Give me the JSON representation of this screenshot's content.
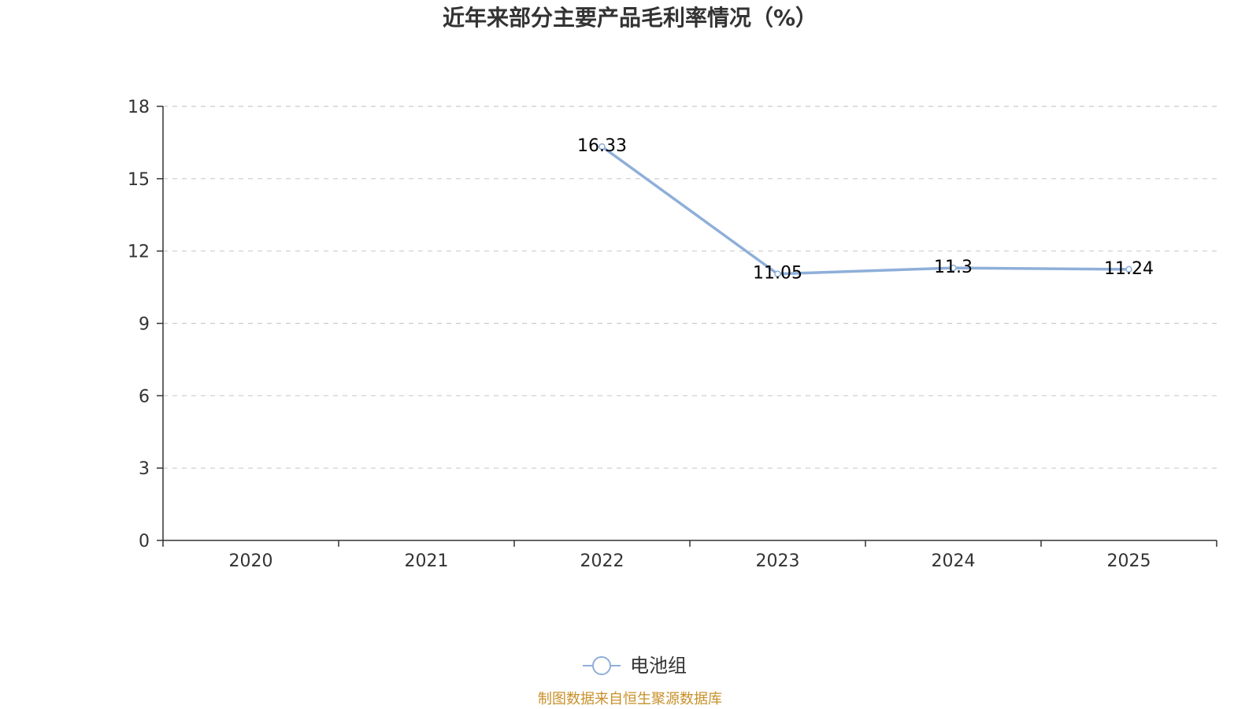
{
  "chart_data": {
    "type": "line",
    "title": "近年来部分主要产品毛利率情况（%）",
    "categories": [
      "2020",
      "2021",
      "2022",
      "2023",
      "2024",
      "2025"
    ],
    "series": [
      {
        "name": "电池组",
        "values": [
          null,
          null,
          16.33,
          11.05,
          11.3,
          11.24
        ],
        "labels": [
          "",
          "",
          "16.33",
          "11.05",
          "11.3",
          "11.24"
        ],
        "color": "#8eafd9"
      }
    ],
    "ylim": [
      0,
      18
    ],
    "yticks": [
      "0",
      "3",
      "6",
      "9",
      "12",
      "15",
      "18"
    ],
    "ytick_values": [
      0,
      3,
      6,
      9,
      12,
      15,
      18
    ],
    "grid": true,
    "legend": "bottom-center",
    "xlabel": "",
    "ylabel": ""
  },
  "footer": {
    "source": "制图数据来自恒生聚源数据库"
  },
  "colors": {
    "axis": "#333333",
    "grid": "#cccccc",
    "source": "#c8902a"
  }
}
